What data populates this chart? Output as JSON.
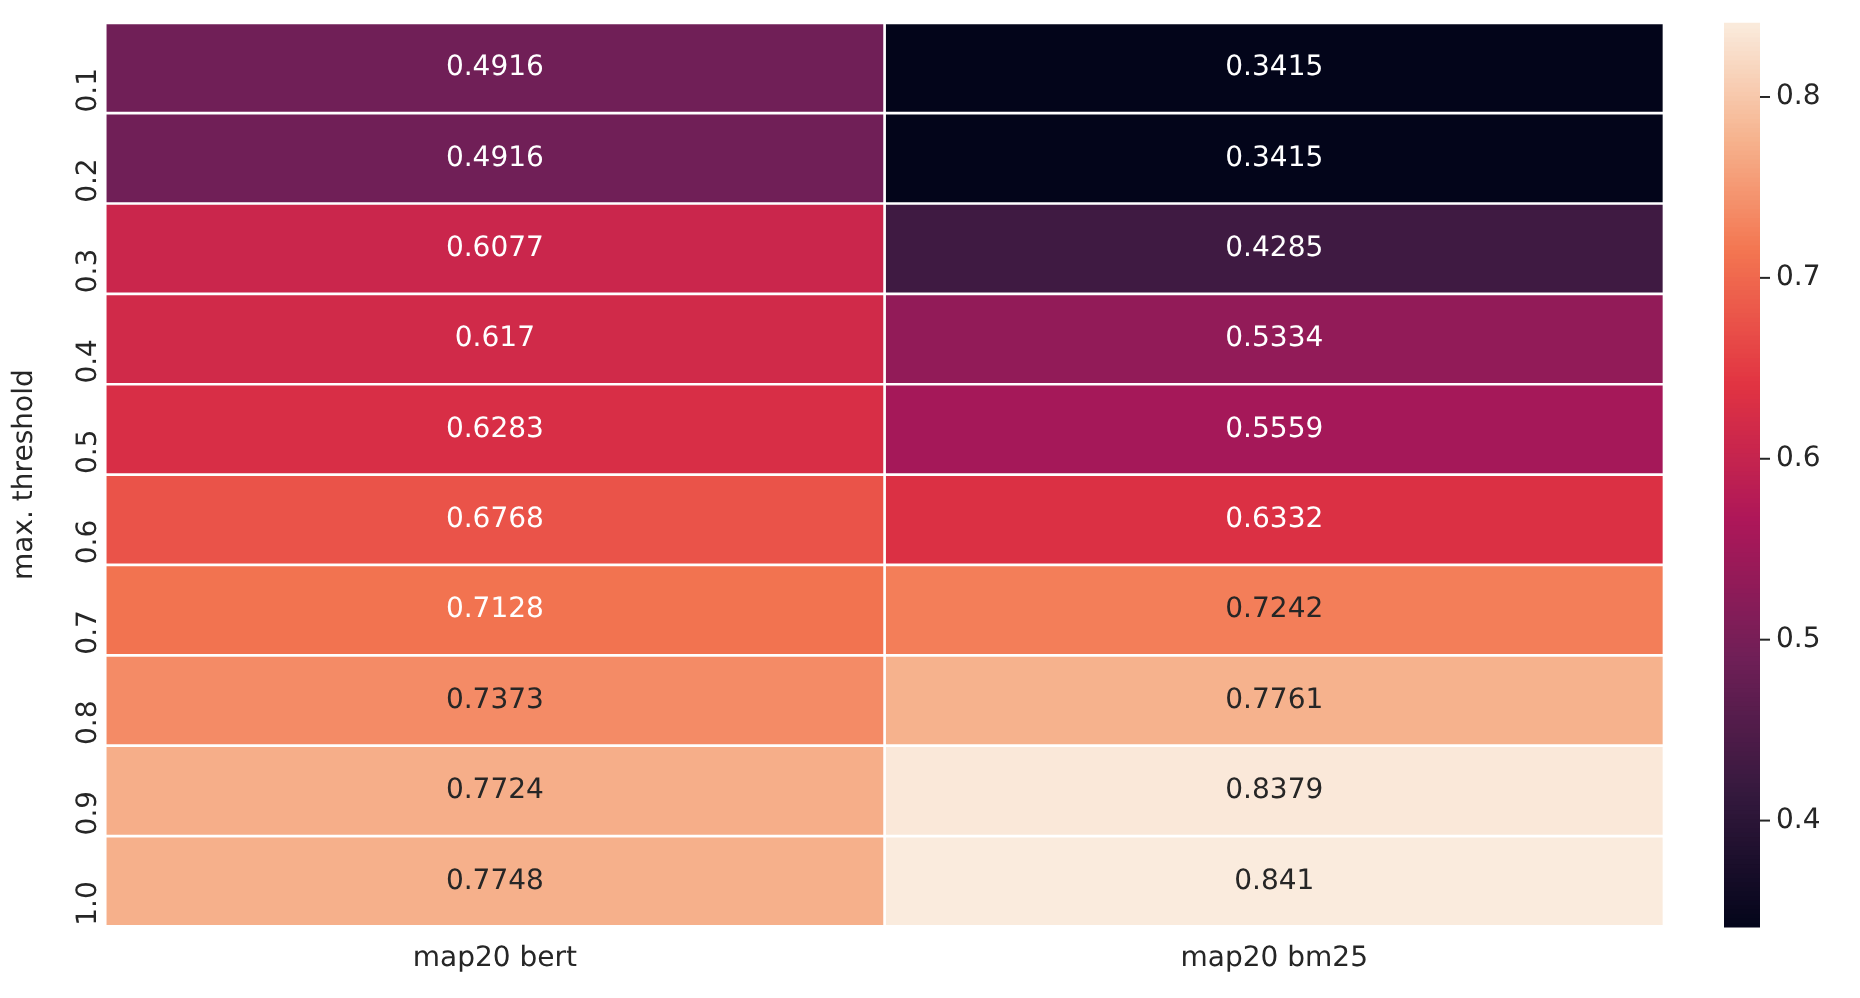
{
  "chart_data": {
    "type": "heatmap",
    "ylabel": "max. threshold",
    "categories": [
      "map20 bert",
      "map20 bm25"
    ],
    "y_categories": [
      "0.1",
      "0.2",
      "0.3",
      "0.4",
      "0.5",
      "0.6",
      "0.7",
      "0.8",
      "0.9",
      "1.0"
    ],
    "cells": [
      [
        0.4916,
        0.3415
      ],
      [
        0.4916,
        0.3415
      ],
      [
        0.6077,
        0.4285
      ],
      [
        0.617,
        0.5334
      ],
      [
        0.6283,
        0.5559
      ],
      [
        0.6768,
        0.6332
      ],
      [
        0.7128,
        0.7242
      ],
      [
        0.7373,
        0.7761
      ],
      [
        0.7724,
        0.8379
      ],
      [
        0.7748,
        0.841
      ]
    ],
    "data_labels": true,
    "clim": [
      0.3415,
      0.841
    ],
    "cticks": [
      0.4,
      0.5,
      0.6,
      0.7,
      0.8
    ]
  }
}
